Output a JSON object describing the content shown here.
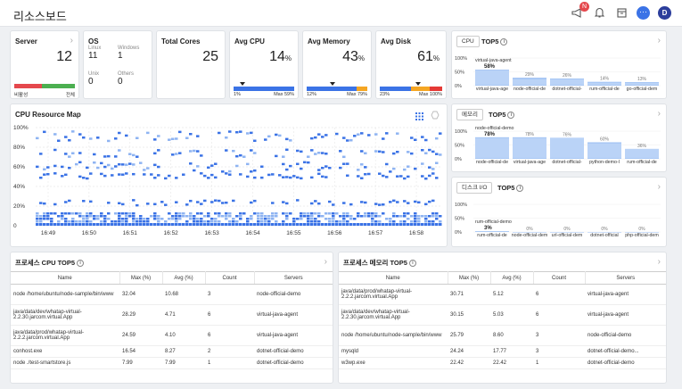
{
  "header": {
    "title": "리소스보드",
    "badge": "N",
    "avatar": "D",
    "more": "···"
  },
  "server": {
    "title": "Server",
    "value": "12",
    "status_label": "비활성",
    "all_label": "전체"
  },
  "os": {
    "title": "OS",
    "items": [
      {
        "label": "Linux",
        "value": "11"
      },
      {
        "label": "Windows",
        "value": "1"
      },
      {
        "label": "Unix",
        "value": "0"
      },
      {
        "label": "Others",
        "value": "0"
      }
    ]
  },
  "cores": {
    "title": "Total Cores",
    "value": "25"
  },
  "avg_cpu": {
    "title": "Avg CPU",
    "value": "14",
    "unit": "%",
    "min": "1%",
    "max_label": "Max",
    "max": "59",
    "pct": "%",
    "fill": 0.14
  },
  "avg_mem": {
    "title": "Avg Memory",
    "value": "43",
    "unit": "%",
    "min": "12%",
    "max_label": "Max",
    "max": "79",
    "pct": "%",
    "fill": 0.43
  },
  "avg_disk": {
    "title": "Avg Disk",
    "value": "61",
    "unit": "%",
    "min": "23%",
    "max_label": "Max",
    "max": "100",
    "pct": "%",
    "fill": 0.61
  },
  "cpu_top5": {
    "tab": "CPU",
    "title": "TOP5",
    "top_name": "virtual-java-agent",
    "top_val": "58%",
    "labels": [
      "virtual-java-age",
      "node-official-de",
      "dotnet-official-",
      "rum-official-de",
      "go-official-dem"
    ],
    "values": [
      58,
      29,
      26,
      14,
      13
    ],
    "display": [
      "58%",
      "29%",
      "26%",
      "14%",
      "13%"
    ],
    "axis": [
      "100%",
      "50%",
      "0%"
    ]
  },
  "mem_top5": {
    "tab": "메모리",
    "title": "TOP5",
    "top_name": "node-official-demo",
    "top_val": "78%",
    "labels": [
      "node-official-de",
      "virtual-java-age",
      "dotnet-official-",
      "python-demo-l",
      "rum-official-de"
    ],
    "values": [
      78,
      78,
      76,
      60,
      36
    ],
    "display": [
      "78%",
      "78%",
      "76%",
      "60%",
      "36%"
    ],
    "axis": [
      "100%",
      "50%",
      "0%"
    ]
  },
  "disk_top5": {
    "tab": "디스크 I/O",
    "title": "TOP5",
    "top_name": "rum-official-demo",
    "top_val": "3%",
    "labels": [
      "rum-official-de",
      "node-official-dem",
      "url-official-dem",
      "dotnet-official",
      "php-official-dem"
    ],
    "values": [
      3,
      0,
      0,
      0,
      0
    ],
    "display": [
      "3%",
      "0%",
      "0%",
      "0%",
      "0%"
    ],
    "axis": [
      "100%",
      "50%",
      "0%"
    ]
  },
  "cpu_map": {
    "title": "CPU Resource Map",
    "y_ticks": [
      "100%",
      "80%",
      "60%",
      "40%",
      "20%",
      "0"
    ],
    "x_ticks": [
      "16:49",
      "16:50",
      "16:51",
      "16:52",
      "16:53",
      "16:54",
      "16:55",
      "16:56",
      "16:57",
      "16:58"
    ]
  },
  "proc_cpu": {
    "title": "프로세스 CPU TOP5",
    "columns": [
      "Name",
      "Max (%)",
      "Avg (%)",
      "Count",
      "Servers"
    ],
    "rows": [
      [
        "node /home/ubuntu/node-sample/bin/www",
        "32.04",
        "10.68",
        "3",
        "node-official-demo"
      ],
      [
        "java/data/dev/whatap-virtual-2.2.30.jarcom.virtual.App",
        "28.29",
        "4.71",
        "6",
        "virtual-java-agent"
      ],
      [
        "java/data/prod/whatap-virtual-2.2.2.jarcom.virtual.App",
        "24.59",
        "4.10",
        "6",
        "virtual-java-agent"
      ],
      [
        "conhost.exe",
        "16.54",
        "8.27",
        "2",
        "dotnet-official-demo"
      ],
      [
        "node ./test-smartstore.js",
        "7.99",
        "7.99",
        "1",
        "dotnet-official-demo"
      ]
    ]
  },
  "proc_mem": {
    "title": "프로세스 메모리 TOP5",
    "columns": [
      "Name",
      "Max (%)",
      "Avg (%)",
      "Count",
      "Servers"
    ],
    "rows": [
      [
        "java/data/prod/whatap-virtual-2.2.2.jarcom.virtual.App",
        "30.71",
        "5.12",
        "6",
        "virtual-java-agent"
      ],
      [
        "java/data/dev/whatap-virtual-2.2.30.jarcom.virtual.App",
        "30.15",
        "5.03",
        "6",
        "virtual-java-agent"
      ],
      [
        "node /home/ubuntu/node-sample/bin/www",
        "25.79",
        "8.60",
        "3",
        "node-official-demo"
      ],
      [
        "mysqld",
        "24.24",
        "17.77",
        "3",
        "dotnet-official-demo..."
      ],
      [
        "w3wp.exe",
        "22.42",
        "22.42",
        "1",
        "dotnet-official-demo"
      ]
    ]
  },
  "colors": {
    "accent": "#3b73e6",
    "bar_light": "#a9c8f5",
    "bar_mid": "#4f86ee",
    "warn": "#f5a623",
    "danger": "#e53935",
    "ok": "#4caf50"
  }
}
